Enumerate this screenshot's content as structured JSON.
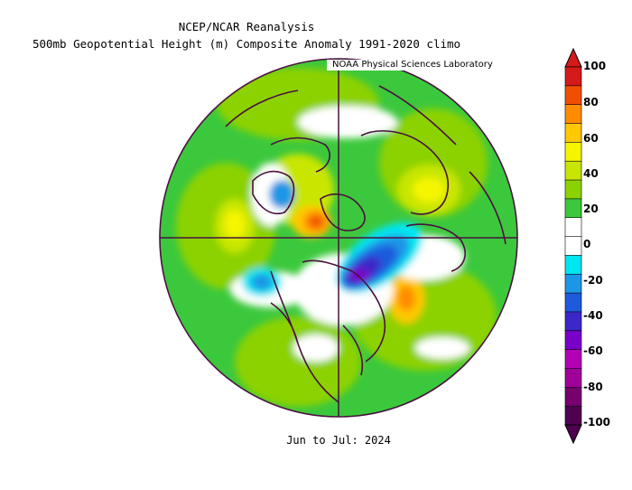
{
  "titles": {
    "line1": "NCEP/NCAR Reanalysis",
    "line2": "500mb Geopotential Height (m) Composite Anomaly 1991-2020 climo",
    "credit": "NOAA Physical Sciences Laboratory",
    "period": "Jun to Jul: 2024"
  },
  "colorbar": {
    "ticks": [
      "100",
      "80",
      "60",
      "40",
      "20",
      "0",
      "-20",
      "-40",
      "-60",
      "-80",
      "-100"
    ],
    "colors": [
      "#d41a1a",
      "#f04f00",
      "#ff8c00",
      "#ffc800",
      "#f5f500",
      "#c8e600",
      "#8cd200",
      "#3cc83c",
      "#ffffff",
      "#ffffff",
      "#00e6f0",
      "#1e96e6",
      "#1e5adc",
      "#3c28c8",
      "#7800c8",
      "#b400b4",
      "#a0009a",
      "#78006e",
      "#500050"
    ]
  }
}
